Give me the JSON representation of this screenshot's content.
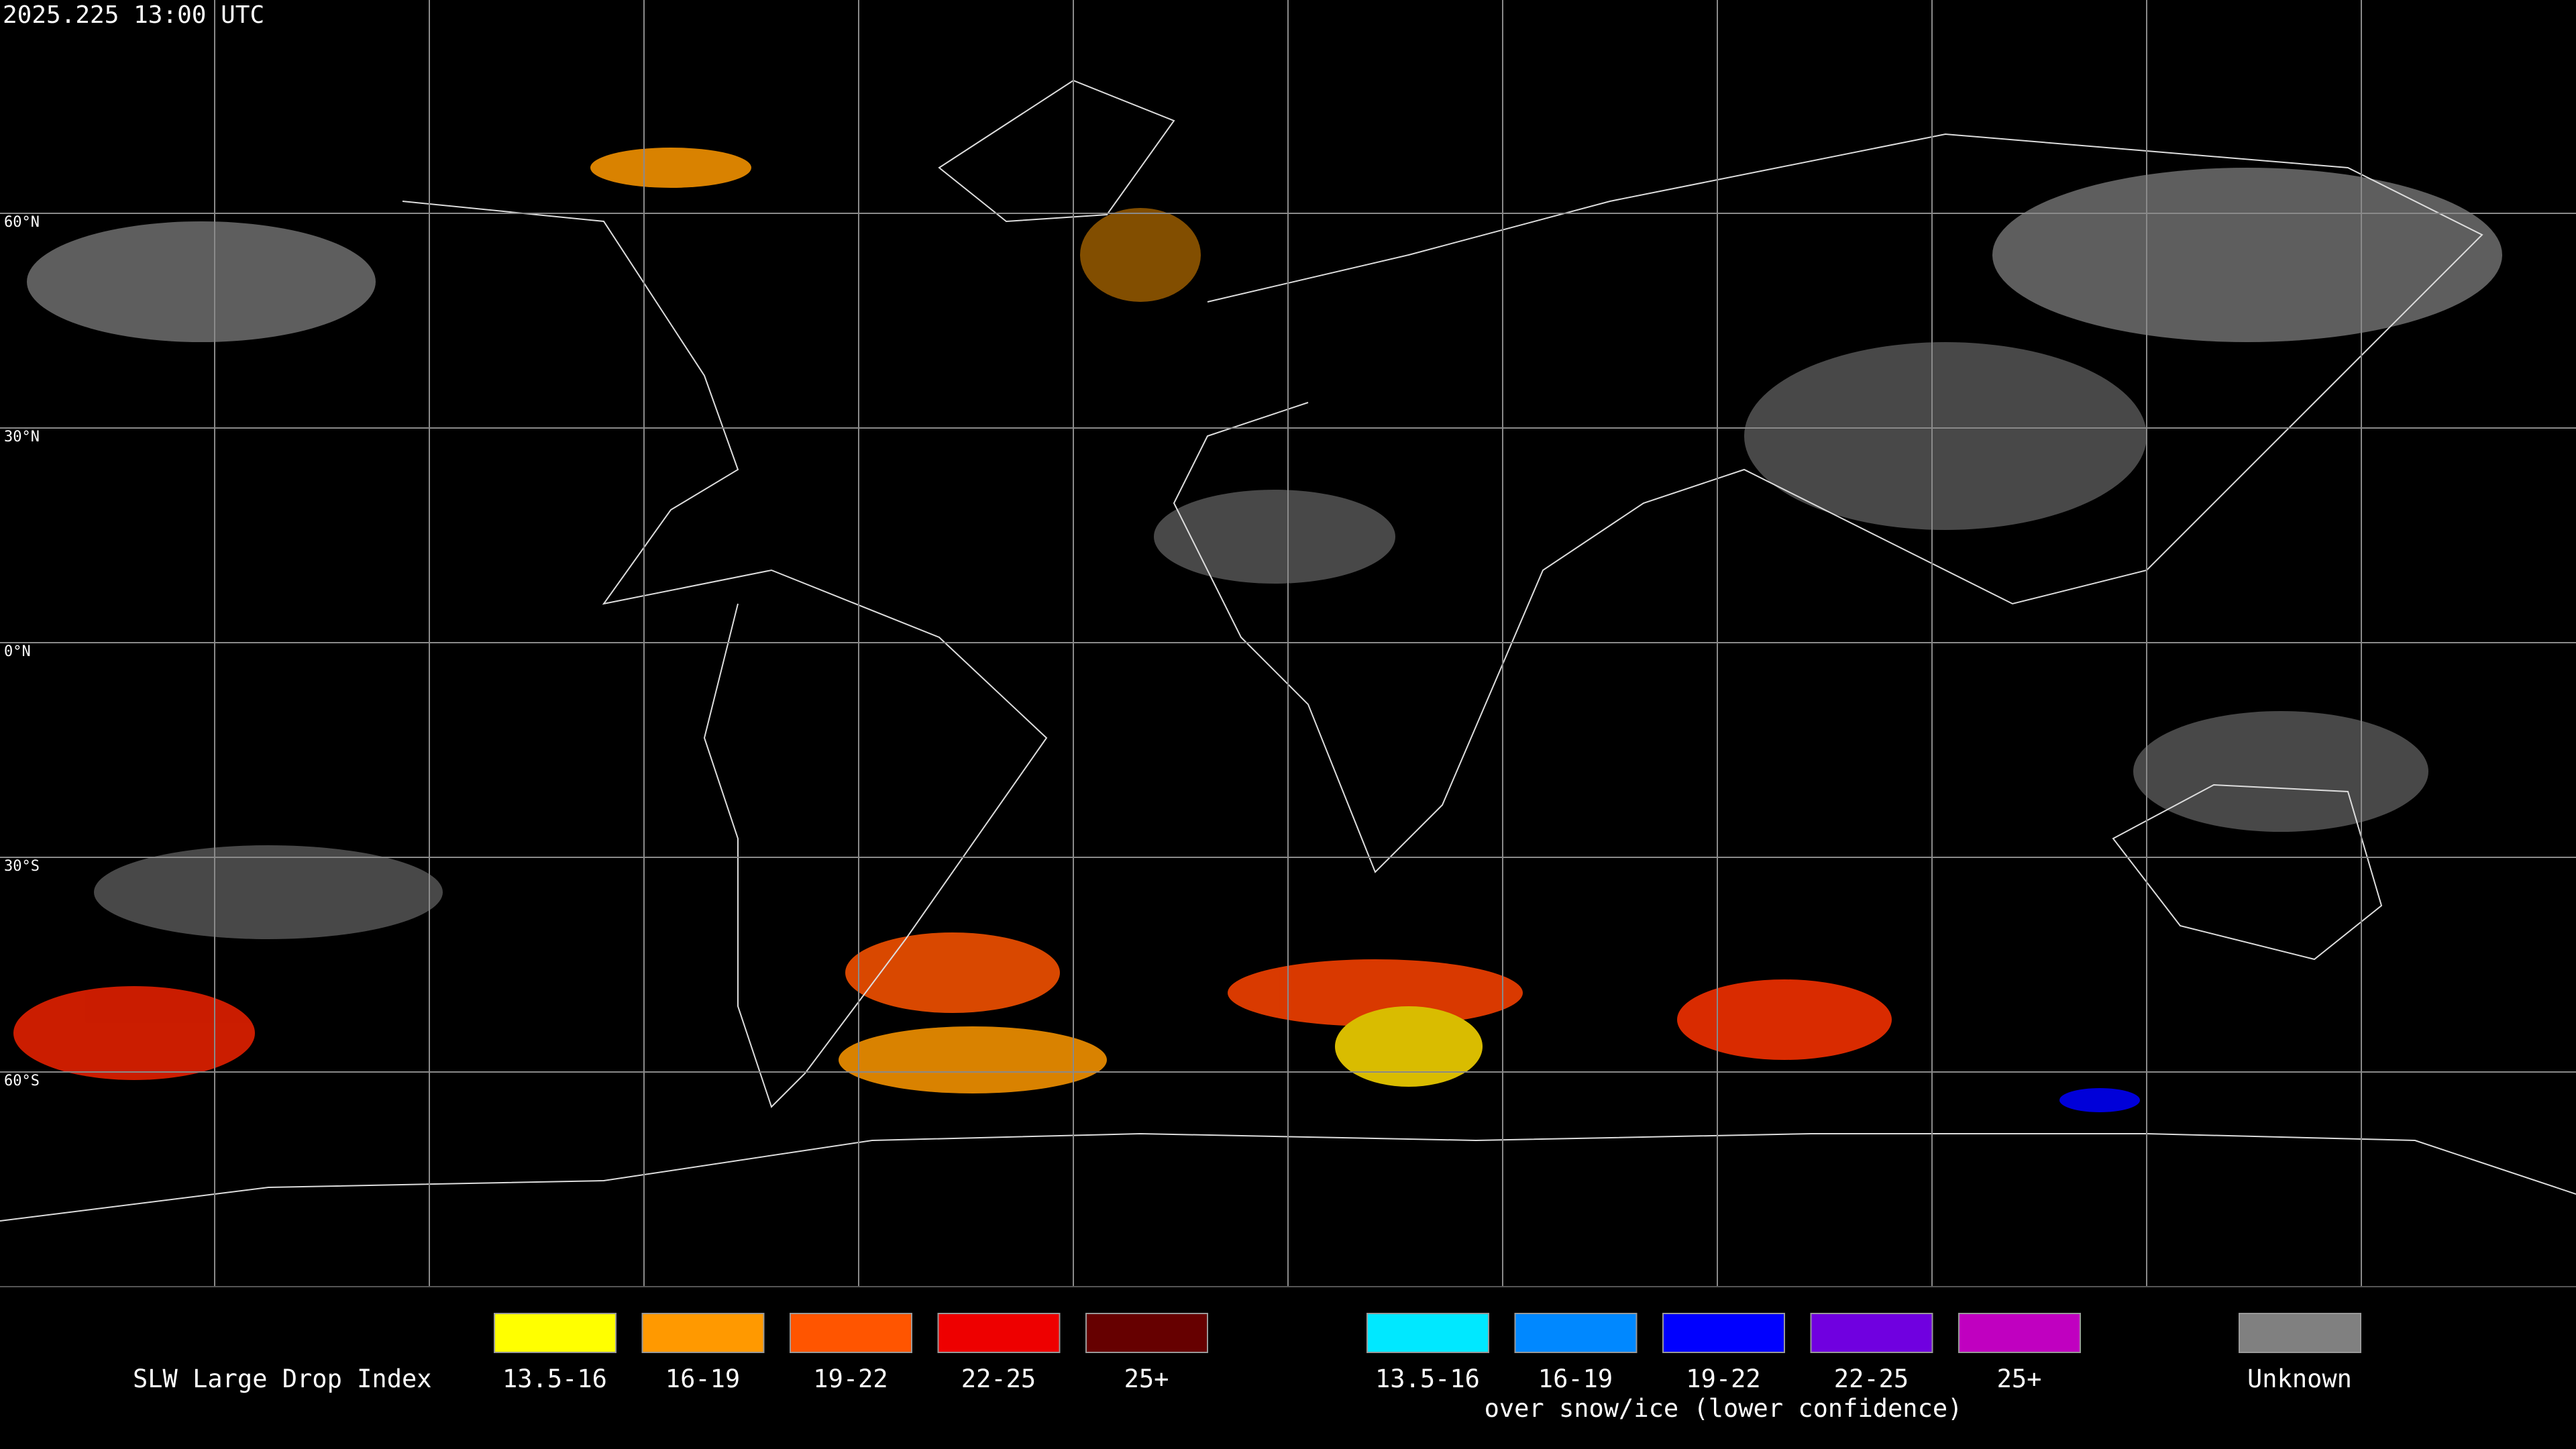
{
  "title": "2025.225 13:00 UTC",
  "lat_labels": [
    "60°N",
    "30°N",
    "0°N",
    "30°S",
    "60°S"
  ],
  "legend": {
    "title": "SLW Large Drop Index",
    "groups": [
      {
        "items": [
          {
            "label": "13.5-16",
            "color": "#ffff00"
          },
          {
            "label": "16-19",
            "color": "#ff9900"
          },
          {
            "label": "19-22",
            "color": "#ff5500"
          },
          {
            "label": "22-25",
            "color": "#ee0000"
          },
          {
            "label": "25+",
            "color": "#660000"
          }
        ]
      },
      {
        "items": [
          {
            "label": "13.5-16",
            "color": "#00e8ff"
          },
          {
            "label": "16-19",
            "color": "#0088ff"
          },
          {
            "label": "19-22",
            "color": "#0000ff"
          },
          {
            "label": "22-25",
            "color": "#7000e0"
          },
          {
            "label": "25+",
            "color": "#c000c0"
          }
        ],
        "note": "over snow/ice (lower confidence)"
      },
      {
        "items": [
          {
            "label": "Unknown",
            "color": "#808080"
          }
        ]
      }
    ]
  }
}
